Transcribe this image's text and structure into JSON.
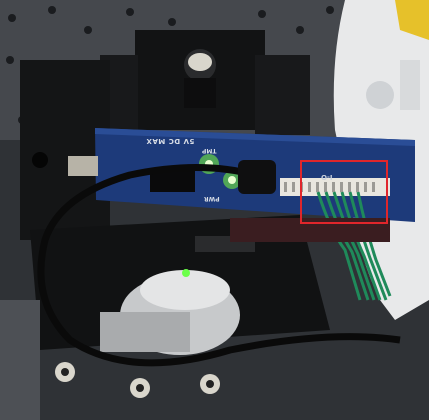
{
  "photo": {
    "labels": {
      "power_rating": "5V DC MAX",
      "temp_led": "TMP",
      "power_led": "PWR",
      "io_port": "I-O"
    },
    "highlight_color": "#e0262b",
    "board_color": "#1d3a7a",
    "led_color": "#7cff3a",
    "wire_color": "#1f8a5a"
  }
}
